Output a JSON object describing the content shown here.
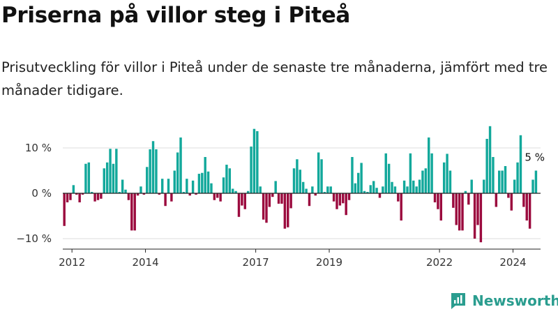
{
  "title": "Priserna på villor steg i Piteå",
  "subtitle": "Prisutveckling för villor i Piteå under de senaste tre månaderna, jämfört med tre månader tidigare.",
  "brand": "Newsworthy",
  "colors": {
    "positive": "#12a89b",
    "negative": "#9b0a3e",
    "grid": "#dddddd",
    "axis": "#222222",
    "brand": "#2a9d8f"
  },
  "chart_data": {
    "type": "bar",
    "title": "",
    "xlabel": "",
    "ylabel": "",
    "ylim": [
      -11,
      16
    ],
    "y_ticks": [
      {
        "value": -10,
        "label": "−10 %"
      },
      {
        "value": 0,
        "label": "0 %"
      },
      {
        "value": 10,
        "label": "10 %"
      }
    ],
    "x_range": [
      2011.75,
      2024.75
    ],
    "x_ticks": [
      {
        "value": 2012,
        "label": "2012"
      },
      {
        "value": 2014,
        "label": "2014"
      },
      {
        "value": 2017,
        "label": "2017"
      },
      {
        "value": 2019,
        "label": "2019"
      },
      {
        "value": 2022,
        "label": "2022"
      },
      {
        "value": 2024,
        "label": "2024"
      }
    ],
    "grid": true,
    "start_year": 2011.75,
    "interval": "month",
    "values": [
      -7.2,
      -2,
      -1.5,
      1.8,
      -0.3,
      -2,
      -0.3,
      6.5,
      6.8,
      0.3,
      -1.8,
      -1.5,
      -1.2,
      5.5,
      6.8,
      9.8,
      6.5,
      9.8,
      0.3,
      3,
      0.8,
      -1.5,
      -8.2,
      -8.2,
      -0.5,
      1.5,
      -0.3,
      5.8,
      9.7,
      11.5,
      9.7,
      -0.3,
      3.2,
      -2.8,
      3.2,
      -1.8,
      5,
      9,
      12.3,
      0.3,
      3.2,
      -0.5,
      2.8,
      -0.3,
      4.3,
      4.5,
      8,
      4.8,
      2.2,
      -1.5,
      -1,
      -1.8,
      3.5,
      6.3,
      5.5,
      1,
      0.5,
      -5.2,
      -2.7,
      -3.5,
      0.5,
      10.3,
      14.2,
      13.7,
      1.5,
      -5.8,
      -6.5,
      -3,
      -0.8,
      2.7,
      -2.3,
      -2.3,
      -7.8,
      -7.5,
      -3.3,
      5.5,
      7.5,
      5.2,
      2.5,
      1,
      -2.8,
      1.5,
      -0.5,
      9,
      7.5,
      0.3,
      1.5,
      1.5,
      -1.8,
      -3.5,
      -2.7,
      -2.2,
      -4.8,
      -1.5,
      8,
      2.2,
      4.5,
      6.7,
      0.5,
      0.3,
      1.8,
      2.7,
      1.2,
      -1,
      1.5,
      8.8,
      6.5,
      2.5,
      1.5,
      -1.8,
      -6,
      2.8,
      1.5,
      8.8,
      2.8,
      1.5,
      3,
      5,
      5.5,
      12.3,
      8.8,
      -2,
      -3.5,
      -6,
      6.8,
      8.7,
      5,
      -3.2,
      -7,
      -8.2,
      -8.2,
      0.5,
      -2.5,
      3,
      -10,
      -7,
      -10.8,
      3,
      12,
      14.8,
      8,
      -3,
      5,
      5,
      6,
      -1,
      -3.8,
      3,
      6.8,
      12.8,
      -3,
      -6,
      -7.8,
      3,
      5
    ]
  },
  "annotation": {
    "label": "5 %",
    "value": 5
  }
}
